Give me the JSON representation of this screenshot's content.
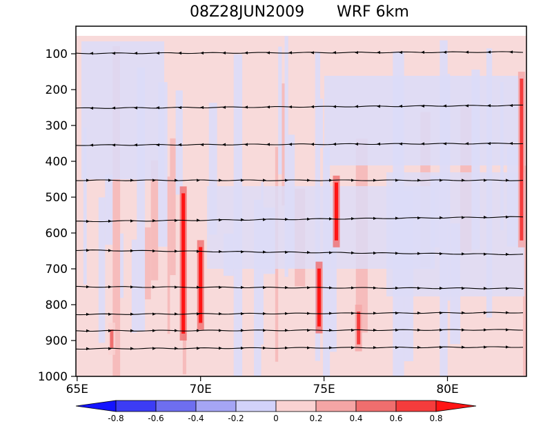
{
  "chart_data": {
    "type": "heatmap",
    "title_left": "08Z28JUN2009",
    "title_right": "WRF  6km",
    "x_ticks": [
      {
        "value": 65,
        "label": "65E"
      },
      {
        "value": 70,
        "label": "70E"
      },
      {
        "value": 75,
        "label": "75E"
      },
      {
        "value": 80,
        "label": "80E"
      }
    ],
    "xlim": [
      64.95,
      83.2
    ],
    "y_ticks": [
      100,
      200,
      300,
      400,
      500,
      600,
      700,
      800,
      900,
      1000
    ],
    "ylim": [
      1000,
      50
    ],
    "colorbar": {
      "levels": [
        "-0.8",
        "-0.6",
        "-0.4",
        "-0.2",
        "0",
        "0.2",
        "0.4",
        "0.6",
        "0.8"
      ],
      "colors": [
        "#1414ff",
        "#3c3cf5",
        "#6e6ef0",
        "#a5a5f5",
        "#d2d2fa",
        "#fad2d2",
        "#f5a5a5",
        "#f06e6e",
        "#f53c3c",
        "#ff1414"
      ]
    },
    "background_value": "-0.2 to 0.2",
    "vertical_streaks": [
      {
        "lon": 69.3,
        "p_top": 470,
        "p_bottom": 900,
        "value": 0.8
      },
      {
        "lon": 70.0,
        "p_top": 620,
        "p_bottom": 870,
        "value": 0.7
      },
      {
        "lon": 74.8,
        "p_top": 680,
        "p_bottom": 880,
        "value": 0.7
      },
      {
        "lon": 75.5,
        "p_top": 440,
        "p_bottom": 640,
        "value": 0.8
      },
      {
        "lon": 76.4,
        "p_top": 800,
        "p_bottom": 930,
        "value": 0.5
      },
      {
        "lon": 83.0,
        "p_top": 150,
        "p_bottom": 640,
        "value": 0.6
      },
      {
        "lon": 66.4,
        "p_top": 850,
        "p_bottom": 940,
        "value": 0.4
      }
    ],
    "streamlines": [
      {
        "p_left": 99,
        "p_right": 95,
        "direction": "west"
      },
      {
        "p_left": 252,
        "p_right": 244,
        "direction": "west"
      },
      {
        "p_left": 355,
        "p_right": 350,
        "direction": "west"
      },
      {
        "p_left": 453,
        "p_right": 453,
        "direction": "east"
      },
      {
        "p_left": 568,
        "p_right": 555,
        "direction": "east"
      },
      {
        "p_left": 648,
        "p_right": 660,
        "direction": "east"
      },
      {
        "p_left": 750,
        "p_right": 755,
        "direction": "east"
      },
      {
        "p_left": 827,
        "p_right": 822,
        "direction": "east"
      },
      {
        "p_left": 873,
        "p_right": 870,
        "direction": "east"
      },
      {
        "p_left": 923,
        "p_right": 918,
        "direction": "east"
      }
    ]
  }
}
